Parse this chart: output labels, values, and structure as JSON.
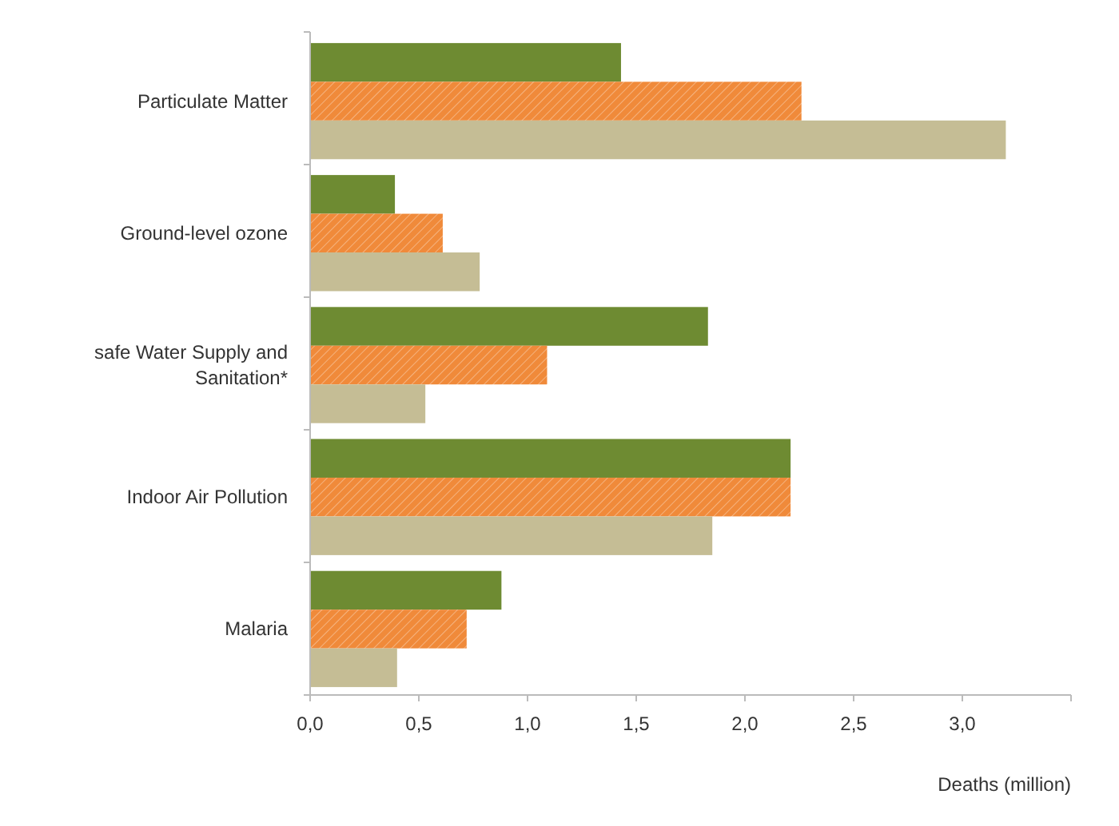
{
  "chart_data": {
    "type": "bar",
    "orientation": "horizontal",
    "xlabel": "Deaths (million)",
    "categories": [
      "Particulate Matter",
      "Ground-level ozone",
      "safe Water Supply and Sanitation*",
      "Indoor Air Pollution",
      "Malaria"
    ],
    "series": [
      {
        "color": "#6e8b32",
        "values": [
          1.43,
          0.39,
          1.83,
          2.21,
          0.88
        ]
      },
      {
        "color": "#f08a3a",
        "values": [
          2.26,
          0.61,
          1.09,
          2.21,
          0.72
        ]
      },
      {
        "color": "#c5bd95",
        "values": [
          3.2,
          0.78,
          0.53,
          1.85,
          0.4
        ]
      }
    ],
    "xlim": [
      0,
      3.5
    ],
    "xticks": [
      {
        "value": 0,
        "label": "0,0"
      },
      {
        "value": 0.5,
        "label": "0,5"
      },
      {
        "value": 1,
        "label": "1,0"
      },
      {
        "value": 1.5,
        "label": "1,5"
      },
      {
        "value": 2,
        "label": "2,0"
      },
      {
        "value": 2.5,
        "label": "2,5"
      },
      {
        "value": 3,
        "label": "3,0"
      },
      {
        "value": 3.5,
        "label": null
      }
    ],
    "grid": false
  }
}
